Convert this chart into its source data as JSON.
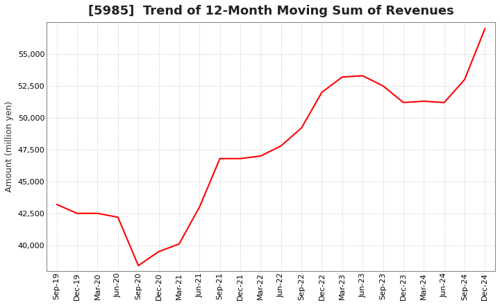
{
  "title": "[5985]  Trend of 12-Month Moving Sum of Revenues",
  "ylabel": "Amount (million yen)",
  "line_color": "#ff0000",
  "background_color": "#ffffff",
  "plot_bg_color": "#ffffff",
  "grid_color": "#aaaaaa",
  "x_labels": [
    "Sep-19",
    "Dec-19",
    "Mar-20",
    "Jun-20",
    "Sep-20",
    "Dec-20",
    "Mar-21",
    "Jun-21",
    "Sep-21",
    "Dec-21",
    "Mar-22",
    "Jun-22",
    "Sep-22",
    "Dec-22",
    "Mar-23",
    "Jun-23",
    "Sep-23",
    "Dec-23",
    "Mar-24",
    "Jun-24",
    "Sep-24",
    "Dec-24"
  ],
  "values": [
    43200,
    42500,
    42500,
    42200,
    38400,
    39500,
    40100,
    43000,
    46800,
    46800,
    47000,
    47800,
    49200,
    52000,
    53200,
    53300,
    52500,
    51200,
    51300,
    51200,
    53000,
    57000
  ],
  "ylim": [
    38000,
    57500
  ],
  "yticks": [
    40000,
    42500,
    45000,
    47500,
    50000,
    52500,
    55000
  ],
  "title_fontsize": 13,
  "axis_fontsize": 8,
  "ylabel_fontsize": 9,
  "line_width": 1.5
}
